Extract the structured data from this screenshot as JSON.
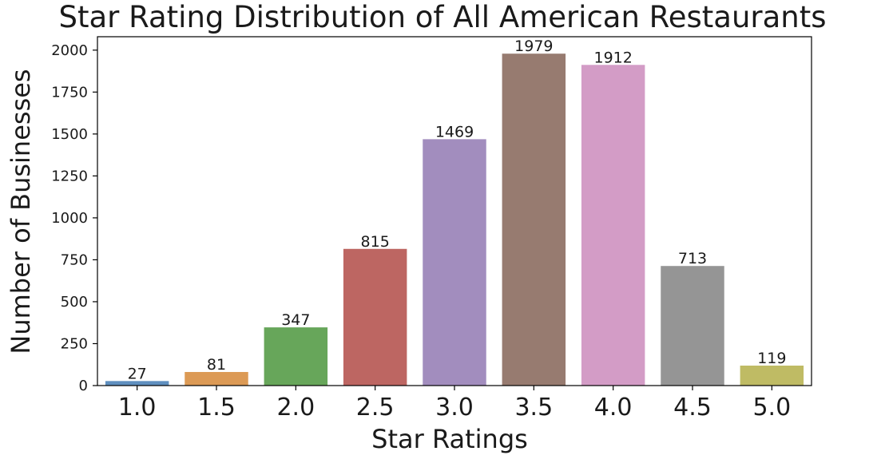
{
  "chart_data": {
    "type": "bar",
    "title": "Star Rating Distribution of All American Restaurants",
    "xlabel": "Star Ratings",
    "ylabel": "Number of Businesses",
    "categories": [
      "1.0",
      "1.5",
      "2.0",
      "2.5",
      "3.0",
      "3.5",
      "4.0",
      "4.5",
      "5.0"
    ],
    "values": [
      27,
      81,
      347,
      815,
      1469,
      1979,
      1912,
      713,
      119
    ],
    "data_labels": [
      "27",
      "81",
      "347",
      "815",
      "1469",
      "1979",
      "1912",
      "713",
      "119"
    ],
    "colors": [
      "#5f8fbf",
      "#dc9a55",
      "#67a65a",
      "#bd6662",
      "#a28dbe",
      "#977b70",
      "#d39cc6",
      "#959595",
      "#bfbb64"
    ],
    "yticks": [
      0,
      250,
      500,
      750,
      1000,
      1250,
      1500,
      1750,
      2000
    ],
    "ylim": [
      0,
      2080
    ],
    "grid": false,
    "legend": "none"
  }
}
